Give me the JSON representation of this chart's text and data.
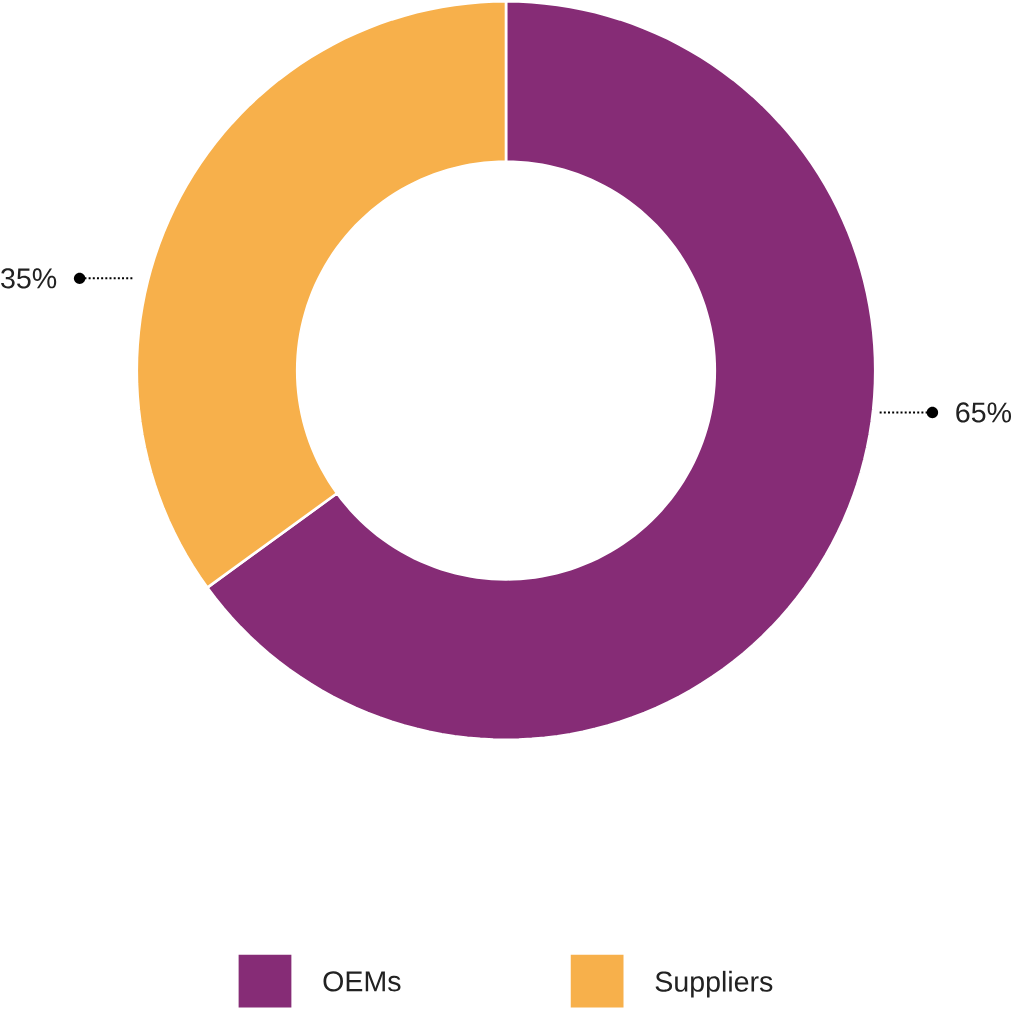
{
  "chart_data": {
    "type": "donut",
    "categories": [
      "OEMs",
      "Suppliers"
    ],
    "values": [
      65,
      35
    ],
    "colors": [
      "#862c76",
      "#f7b04b"
    ],
    "value_labels": [
      "65%",
      "35%"
    ],
    "legend": "bottom"
  }
}
